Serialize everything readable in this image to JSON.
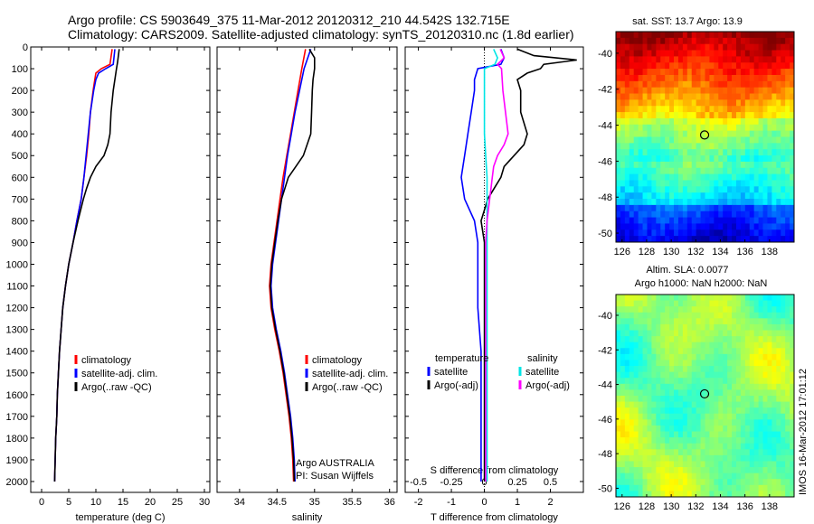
{
  "header": {
    "line1": "Argo profile: CS 5903649_375 11-Mar-2012 20120312_210 44.542S 132.715E",
    "line2": "Climatology: CARS2009. Satellite-adjusted climatology: synTS_20120310.nc (1.8d earlier)"
  },
  "colors": {
    "climatology": "#ff0000",
    "satellite": "#0000ff",
    "argo": "#000000",
    "salinity_satellite": "#00e5e5",
    "salinity_argo": "#ff00ff"
  },
  "chart_data": [
    {
      "id": "temperature",
      "type": "line",
      "xlabel": "temperature (deg C)",
      "ylabel": "",
      "xlim": [
        -2,
        31
      ],
      "ylim": [
        2050,
        0
      ],
      "xticks": [
        "0",
        "5",
        "10",
        "15",
        "20",
        "25",
        "30"
      ],
      "xtick_values": [
        0,
        5,
        10,
        15,
        20,
        25,
        30
      ],
      "yticks": [
        "0",
        "100",
        "200",
        "300",
        "400",
        "500",
        "600",
        "700",
        "800",
        "900",
        "1000",
        "1100",
        "1200",
        "1300",
        "1400",
        "1500",
        "1600",
        "1700",
        "1800",
        "1900",
        "2000"
      ],
      "ytick_values": [
        0,
        100,
        200,
        300,
        400,
        500,
        600,
        700,
        800,
        900,
        1000,
        1100,
        1200,
        1300,
        1400,
        1500,
        1600,
        1700,
        1800,
        1900,
        2000
      ],
      "legend": [
        "climatology",
        "satellite-adj. clim.",
        "Argo(..raw -QC)"
      ],
      "series": [
        {
          "name": "climatology",
          "pressure": [
            10,
            80,
            100,
            120,
            150,
            200,
            300,
            400,
            500,
            600,
            700,
            800,
            900,
            1000,
            1100,
            1200,
            1300,
            1400,
            1500,
            1600,
            1700,
            1800,
            1900,
            2000
          ],
          "values": [
            13.0,
            12.6,
            11.0,
            10.0,
            9.8,
            9.5,
            9.0,
            8.7,
            8.3,
            7.8,
            7.3,
            6.5,
            5.8,
            5.0,
            4.4,
            3.9,
            3.6,
            3.3,
            3.1,
            2.9,
            2.8,
            2.6,
            2.5,
            2.4
          ]
        },
        {
          "name": "satellite-adj. clim.",
          "pressure": [
            10,
            80,
            100,
            120,
            150,
            200,
            300,
            400,
            500,
            600,
            700,
            800,
            900,
            1000,
            1100,
            1200,
            1300,
            1400,
            1500,
            1600,
            1700,
            1800,
            1900,
            2000
          ],
          "values": [
            13.5,
            13.2,
            11.8,
            10.5,
            10.0,
            9.6,
            9.0,
            8.6,
            8.2,
            7.8,
            7.3,
            6.5,
            5.8,
            5.0,
            4.4,
            3.9,
            3.6,
            3.3,
            3.1,
            2.9,
            2.8,
            2.6,
            2.5,
            2.4
          ]
        },
        {
          "name": "Argo(..raw -QC)",
          "pressure": [
            10,
            70,
            100,
            150,
            200,
            300,
            400,
            450,
            500,
            550,
            600,
            650,
            700,
            800,
            900,
            1000,
            1100,
            1200,
            1300,
            1400,
            1500,
            1600,
            1700,
            1800,
            1900,
            2000
          ],
          "values": [
            14.3,
            14.0,
            13.8,
            13.5,
            13.2,
            12.8,
            12.6,
            12.2,
            11.5,
            10.0,
            9.0,
            8.3,
            7.7,
            6.7,
            5.8,
            5.0,
            4.4,
            3.9,
            3.6,
            3.3,
            3.1,
            2.9,
            2.8,
            2.6,
            2.5,
            2.4
          ]
        }
      ]
    },
    {
      "id": "salinity",
      "type": "line",
      "xlabel": "salinity",
      "xlim": [
        33.7,
        36.1
      ],
      "ylim": [
        2050,
        0
      ],
      "xticks": [
        "34",
        "34.5",
        "35",
        "35.5",
        "36"
      ],
      "xtick_values": [
        34,
        34.5,
        35,
        35.5,
        36
      ],
      "legend": [
        "climatology",
        "satellite-adj. clim.",
        "Argo(..raw -QC)"
      ],
      "annotations": [
        "Argo AUSTRALIA",
        "PI: Susan Wijffels"
      ],
      "series": [
        {
          "name": "climatology",
          "pressure": [
            10,
            100,
            200,
            300,
            400,
            500,
            600,
            700,
            800,
            900,
            1000,
            1100,
            1200,
            1300,
            1400,
            1500,
            1600,
            1700,
            1800,
            1900,
            2000
          ],
          "values": [
            34.88,
            34.83,
            34.78,
            34.73,
            34.68,
            34.63,
            34.58,
            34.54,
            34.5,
            34.46,
            34.42,
            34.4,
            34.42,
            34.47,
            34.53,
            34.58,
            34.62,
            34.66,
            34.69,
            34.71,
            34.72
          ]
        },
        {
          "name": "satellite-adj. clim.",
          "pressure": [
            10,
            100,
            200,
            300,
            400,
            500,
            600,
            700,
            800,
            900,
            1000,
            1100,
            1200,
            1300,
            1400,
            1500,
            1600,
            1700,
            1800,
            1900,
            2000
          ],
          "values": [
            34.95,
            34.86,
            34.8,
            34.74,
            34.69,
            34.64,
            34.6,
            34.56,
            34.52,
            34.48,
            34.44,
            34.42,
            34.44,
            34.49,
            34.55,
            34.6,
            34.64,
            34.68,
            34.71,
            34.73,
            34.74
          ]
        },
        {
          "name": "Argo(..raw -QC)",
          "pressure": [
            10,
            50,
            100,
            150,
            200,
            300,
            400,
            500,
            550,
            600,
            700,
            800,
            900,
            1000,
            1100,
            1200,
            1300,
            1400,
            1500,
            1600,
            1700,
            1800,
            1900,
            2000
          ],
          "values": [
            34.93,
            35.0,
            35.0,
            34.98,
            34.97,
            34.96,
            34.95,
            34.85,
            34.75,
            34.65,
            34.56,
            34.51,
            34.47,
            34.43,
            34.41,
            34.43,
            34.48,
            34.54,
            34.59,
            34.63,
            34.67,
            34.7,
            34.72,
            34.73
          ]
        }
      ]
    },
    {
      "id": "difference",
      "type": "line",
      "xlabel": "T difference from climatology",
      "xlabel_top": "S difference from climatology",
      "xlim": [
        -2.4,
        3.0
      ],
      "ylim": [
        2050,
        0
      ],
      "xticks": [
        "-2",
        "-1",
        "0",
        "1",
        "2"
      ],
      "xtick_values": [
        -2,
        -1,
        0,
        1,
        2
      ],
      "sticks": [
        "-0.5",
        "-0.25",
        "0",
        "0.25",
        "0.5"
      ],
      "stick_values": [
        -0.5,
        -0.25,
        0,
        0.25,
        0.5
      ],
      "legend_temperature_title": "temperature",
      "legend_salinity_title": "salinity",
      "legend_temperature": [
        "satellite",
        "Argo(-adj)"
      ],
      "legend_salinity": [
        "satellite",
        "Argo(-adj)"
      ],
      "series": [
        {
          "name": "temperature satellite",
          "pressure": [
            10,
            50,
            80,
            100,
            150,
            200,
            300,
            400,
            500,
            600,
            700,
            800,
            900,
            1000,
            1200,
            1400,
            1600,
            1800,
            2000
          ],
          "values": [
            0.5,
            0.6,
            0.5,
            -0.2,
            -0.3,
            -0.3,
            -0.4,
            -0.5,
            -0.6,
            -0.7,
            -0.6,
            -0.3,
            -0.2,
            -0.2,
            -0.2,
            -0.1,
            -0.1,
            -0.1,
            -0.1
          ]
        },
        {
          "name": "temperature Argo(-adj)",
          "pressure": [
            10,
            40,
            60,
            80,
            100,
            120,
            150,
            200,
            300,
            400,
            450,
            500,
            550,
            600,
            650,
            700,
            750,
            800,
            900,
            1000,
            1200,
            1400,
            1600,
            1800,
            2000
          ],
          "values": [
            1.0,
            1.5,
            2.8,
            1.8,
            1.7,
            1.3,
            1.0,
            1.1,
            1.1,
            1.3,
            1.2,
            0.9,
            0.6,
            0.5,
            0.3,
            0.1,
            0.0,
            -0.1,
            0.0,
            0.0,
            0.0,
            0.0,
            0.0,
            0.0,
            0.0
          ]
        },
        {
          "name": "salinity satellite",
          "pressure": [
            10,
            50,
            80,
            100,
            150,
            200,
            300,
            400,
            500,
            600,
            700,
            800,
            900,
            1000,
            1200,
            1400,
            1600,
            1800,
            2000
          ],
          "values": [
            0.07,
            0.1,
            0.08,
            0.0,
            0.0,
            0.0,
            0.0,
            0.0,
            0.01,
            0.02,
            0.02,
            0.02,
            0.02,
            0.02,
            0.02,
            0.02,
            0.02,
            0.02,
            0.02
          ]
        },
        {
          "name": "salinity Argo(-adj)",
          "pressure": [
            10,
            50,
            80,
            100,
            200,
            300,
            400,
            450,
            500,
            550,
            600,
            650,
            700,
            800,
            900,
            1000,
            1200,
            1400,
            1600,
            1800,
            2000
          ],
          "values": [
            0.12,
            0.15,
            0.1,
            0.13,
            0.14,
            0.16,
            0.18,
            0.15,
            0.1,
            0.07,
            0.06,
            0.05,
            0.04,
            0.02,
            0.01,
            0.01,
            0.01,
            0.01,
            0.01,
            0.01,
            0.01
          ]
        }
      ]
    },
    {
      "id": "sst-map",
      "type": "heatmap",
      "title": "sat. SST: 13.7 Argo: 13.9",
      "xticks": [
        "126",
        "128",
        "130",
        "132",
        "134",
        "136",
        "138"
      ],
      "yticks": [
        "-40",
        "-42",
        "-44",
        "-46",
        "-48",
        "-50"
      ],
      "xlim": [
        125.5,
        140
      ],
      "ylim": [
        -50.5,
        -38.8
      ],
      "marker": {
        "lon": 132.715,
        "lat": -44.542
      }
    },
    {
      "id": "sla-map",
      "type": "heatmap",
      "title": "Altim. SLA: 0.0077",
      "subtitle": "Argo h1000: NaN h2000: NaN",
      "xticks": [
        "126",
        "128",
        "130",
        "132",
        "134",
        "136",
        "138"
      ],
      "yticks": [
        "-40",
        "-42",
        "-44",
        "-46",
        "-48",
        "-50"
      ],
      "xlim": [
        125.5,
        140
      ],
      "ylim": [
        -50.5,
        -38.8
      ],
      "marker": {
        "lon": 132.715,
        "lat": -44.542
      }
    }
  ],
  "footer": {
    "stamp": "IMOS 16-Mar-2012 17:01:12"
  }
}
